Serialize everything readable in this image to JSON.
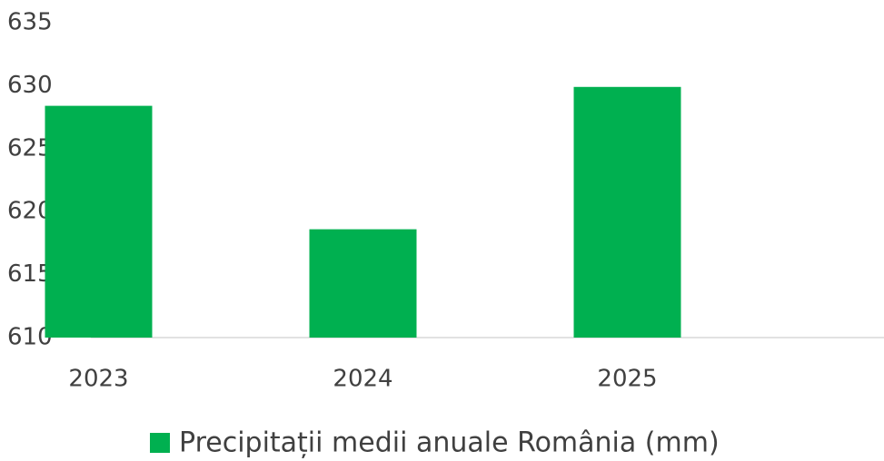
{
  "chart_data": {
    "type": "bar",
    "categories": [
      "2023",
      "2024",
      "2025"
    ],
    "series": [
      {
        "name": "Precipitații medii anuale România (mm)",
        "color": "#00b050",
        "values": [
          628.4,
          618.6,
          629.9
        ]
      }
    ],
    "ylim": [
      610,
      635
    ],
    "yticks": [
      610,
      615,
      620,
      625,
      630,
      635
    ],
    "grid": false,
    "legend": "bottom"
  }
}
